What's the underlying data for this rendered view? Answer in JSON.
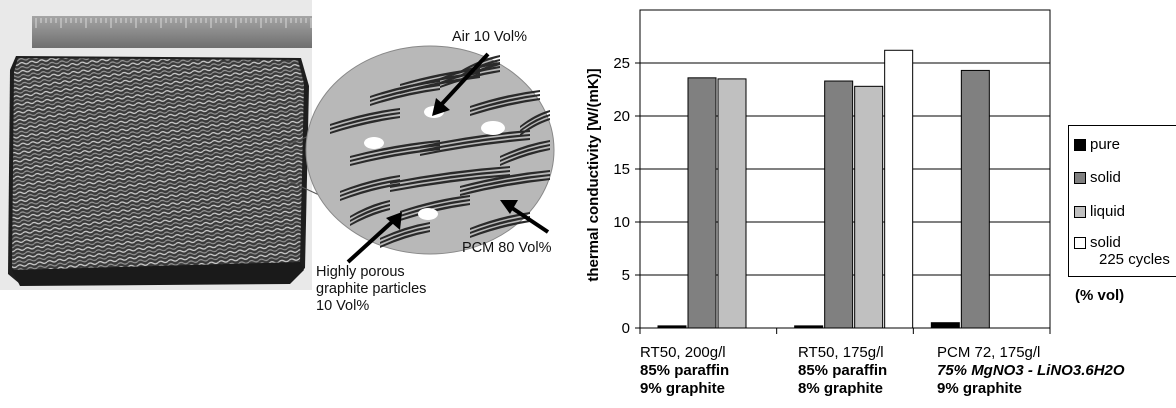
{
  "figure": {
    "photo_labels": {
      "air": "Air 10 Vol%",
      "pcm": "PCM 80 Vol%",
      "graphite_line1": "Highly porous",
      "graphite_line2": "graphite particles",
      "graphite_line3": "10 Vol%"
    },
    "colors": {
      "composite_block": "#3a3a3a",
      "ruler": "#8a8a8a",
      "circle_fill": "#b8b8b8",
      "graphite_flakes": "#2a2a2a",
      "air_pores": "#ffffff"
    }
  },
  "chart_data": {
    "type": "bar",
    "ylabel": "thermal conductivity [W/(mK)]",
    "ylim": [
      0,
      30
    ],
    "yticks": [
      0,
      5,
      10,
      15,
      20,
      25
    ],
    "grid": true,
    "legend_position": "right",
    "categories": [
      {
        "line1": "RT50,  200g/l",
        "line2": "85% paraffin",
        "line3": "9% graphite"
      },
      {
        "line1": "RT50,  175g/l",
        "line2": "85% paraffin",
        "line3": "8% graphite"
      },
      {
        "line1": "PCM 72, 175g/l",
        "line2": "75% MgNO3 - LiNO3.6H2O",
        "line3": "9% graphite"
      }
    ],
    "series": [
      {
        "name": "pure",
        "color": "#000000",
        "values": [
          0.2,
          0.2,
          0.5
        ]
      },
      {
        "name": "solid",
        "color": "#808080",
        "values": [
          23.6,
          23.3,
          24.3
        ]
      },
      {
        "name": "liquid",
        "color": "#c0c0c0",
        "values": [
          23.5,
          22.8,
          null
        ]
      },
      {
        "name": "solid 225 cycles",
        "color": "#ffffff",
        "values": [
          null,
          26.2,
          null
        ]
      }
    ],
    "legend": {
      "pure": "pure",
      "solid": "solid",
      "liquid": "liquid",
      "cycles_line1": "solid",
      "cycles_line2": "225 cycles"
    },
    "unit_note": "(% vol)"
  }
}
